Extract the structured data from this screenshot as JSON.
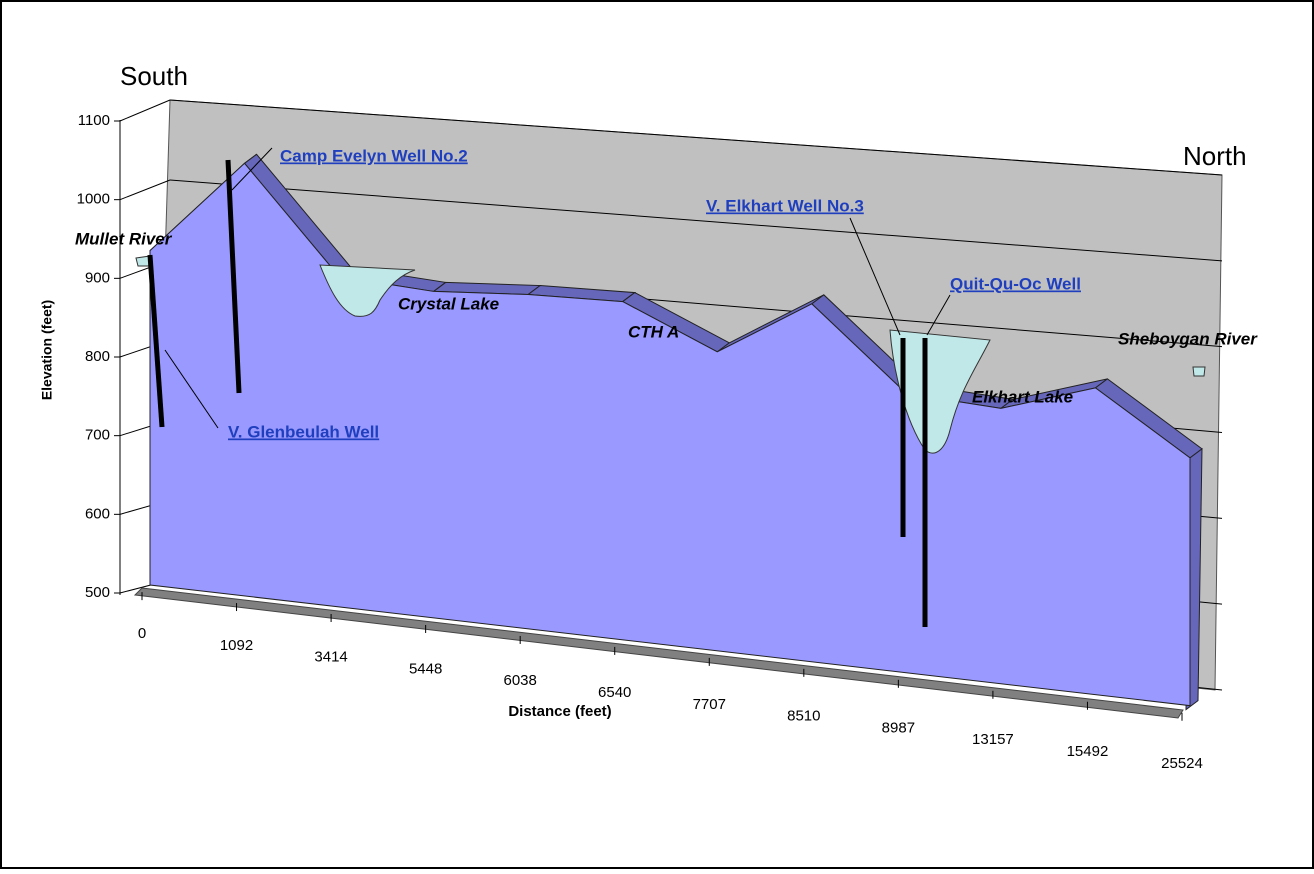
{
  "chart_data": {
    "type": "area3d",
    "x_label": "Distance (feet)",
    "y_label": "Elevation (feet)",
    "categories": [
      "0",
      "1092",
      "3414",
      "5448",
      "6038",
      "6540",
      "7707",
      "8510",
      "8987",
      "13157",
      "15492",
      "25524"
    ],
    "values": [
      925,
      1050,
      920,
      915,
      925,
      930,
      880,
      955,
      855,
      850,
      890,
      815
    ],
    "color": "#9999ff",
    "ylim": [
      500,
      1100
    ],
    "yticks": [
      500,
      600,
      700,
      800,
      900,
      1000,
      1100
    ],
    "grid": true,
    "annotations": [
      "South",
      "North",
      "Mullet River",
      "Crystal Lake",
      "CTH A",
      "Elkhart Lake",
      "Sheboygan River"
    ],
    "links": [
      "Camp Evelyn Well No.2",
      "V. Elkhart Well No.3",
      "Quit-Qu-Oc Well",
      "V. Glenbeulah Well"
    ]
  }
}
